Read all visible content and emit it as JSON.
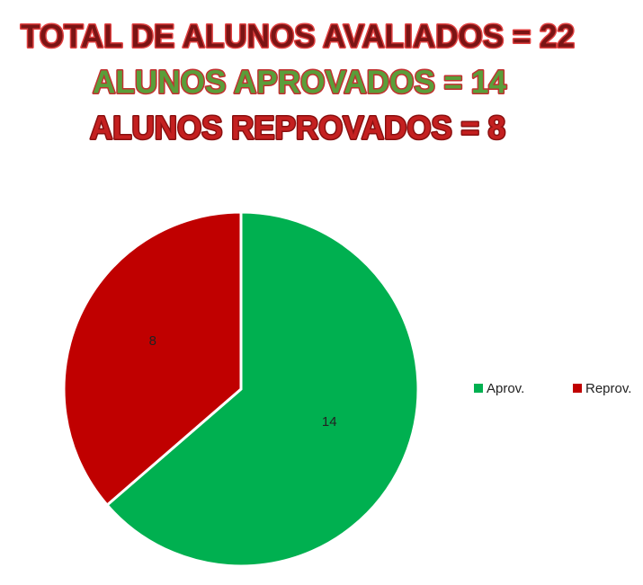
{
  "chart_data": {
    "type": "pie",
    "title": [
      "TOTAL DE ALUNOS AVALIADOS = 22",
      "ALUNOS APROVADOS = 14",
      "ALUNOS REPROVADOS = 8"
    ],
    "categories": [
      "Aprov.",
      "Reprov."
    ],
    "values": [
      14,
      8
    ],
    "colors": [
      "#00b050",
      "#c00000"
    ],
    "legend": "right"
  }
}
